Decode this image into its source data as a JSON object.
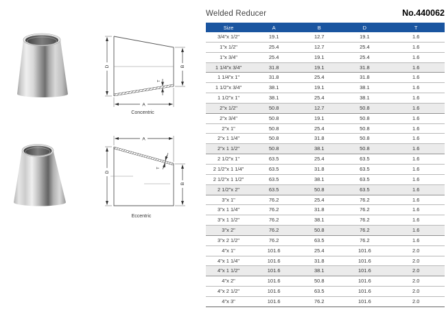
{
  "header": {
    "title": "Welded Reducer",
    "part_no": "No.440062"
  },
  "table": {
    "columns": [
      "Size",
      "A",
      "B",
      "D",
      "T"
    ],
    "shaded_rows": [
      4,
      8,
      12,
      16,
      20,
      24
    ],
    "rows": [
      {
        "cells": [
          "3/4\"x 1/2\"",
          "19.1",
          "12.7",
          "19.1",
          "1.6"
        ]
      },
      {
        "cells": [
          "1\"x 1/2\"",
          "25.4",
          "12.7",
          "25.4",
          "1.6"
        ]
      },
      {
        "cells": [
          "1\"x 3/4\"",
          "25.4",
          "19.1",
          "25.4",
          "1.6"
        ]
      },
      {
        "cells": [
          "1 1/4\"x 3/4\"",
          "31.8",
          "19.1",
          "31.8",
          "1.6"
        ]
      },
      {
        "cells": [
          "1 1/4\"x 1\"",
          "31.8",
          "25.4",
          "31.8",
          "1.6"
        ]
      },
      {
        "cells": [
          "1 1/2\"x 3/4\"",
          "38.1",
          "19.1",
          "38.1",
          "1.6"
        ]
      },
      {
        "cells": [
          "1 1/2\"x 1\"",
          "38.1",
          "25.4",
          "38.1",
          "1.6"
        ]
      },
      {
        "cells": [
          "2\"x 1/2\"",
          "50.8",
          "12.7",
          "50.8",
          "1.6"
        ]
      },
      {
        "cells": [
          "2\"x 3/4\"",
          "50.8",
          "19.1",
          "50.8",
          "1.6"
        ]
      },
      {
        "cells": [
          "2\"x 1\"",
          "50.8",
          "25.4",
          "50.8",
          "1.6"
        ]
      },
      {
        "cells": [
          "2\"x 1 1/4\"",
          "50.8",
          "31.8",
          "50.8",
          "1.6"
        ]
      },
      {
        "cells": [
          "2\"x 1 1/2\"",
          "50.8",
          "38.1",
          "50.8",
          "1.6"
        ]
      },
      {
        "cells": [
          "2 1/2\"x 1\"",
          "63.5",
          "25.4",
          "63.5",
          "1.6"
        ]
      },
      {
        "cells": [
          "2 1/2\"x 1 1/4\"",
          "63.5",
          "31.8",
          "63.5",
          "1.6"
        ]
      },
      {
        "cells": [
          "2 1/2\"x 1 1/2\"",
          "63.5",
          "38.1",
          "63.5",
          "1.6"
        ]
      },
      {
        "cells": [
          "2 1/2\"x 2\"",
          "63.5",
          "50.8",
          "63.5",
          "1.6"
        ]
      },
      {
        "cells": [
          "3\"x 1\"",
          "76.2",
          "25.4",
          "76.2",
          "1.6"
        ]
      },
      {
        "cells": [
          "3\"x 1 1/4\"",
          "76.2",
          "31.8",
          "76.2",
          "1.6"
        ]
      },
      {
        "cells": [
          "3\"x 1 1/2\"",
          "76.2",
          "38.1",
          "76.2",
          "1.6"
        ]
      },
      {
        "cells": [
          "3\"x 2\"",
          "76.2",
          "50.8",
          "76.2",
          "1.6"
        ]
      },
      {
        "cells": [
          "3\"x 2 1/2\"",
          "76.2",
          "63.5",
          "76.2",
          "1.6"
        ]
      },
      {
        "cells": [
          "4\"x 1\"",
          "101.6",
          "25.4",
          "101.6",
          "2.0"
        ]
      },
      {
        "cells": [
          "4\"x 1 1/4\"",
          "101.6",
          "31.8",
          "101.6",
          "2.0"
        ]
      },
      {
        "cells": [
          "4\"x 1 1/2\"",
          "101.6",
          "38.1",
          "101.6",
          "2.0"
        ]
      },
      {
        "cells": [
          "4\"x 2\"",
          "101.6",
          "50.8",
          "101.6",
          "2.0"
        ]
      },
      {
        "cells": [
          "4\"x 2 1/2\"",
          "101.6",
          "63.5",
          "101.6",
          "2.0"
        ]
      },
      {
        "cells": [
          "4\"x 3\"",
          "101.6",
          "76.2",
          "101.6",
          "2.0"
        ]
      }
    ]
  },
  "diagrams": {
    "concentric": {
      "label": "Concentric",
      "dim_a": "A",
      "dim_b": "B",
      "dim_d": "D",
      "dim_t": "T"
    },
    "eccentric": {
      "label": "Eccentric",
      "dim_a": "A",
      "dim_b": "B",
      "dim_d": "D",
      "dim_t": "T"
    }
  },
  "colors": {
    "header_bg": "#1a55a0",
    "header_text": "#ffffff",
    "row_shaded": "#ebebeb"
  }
}
